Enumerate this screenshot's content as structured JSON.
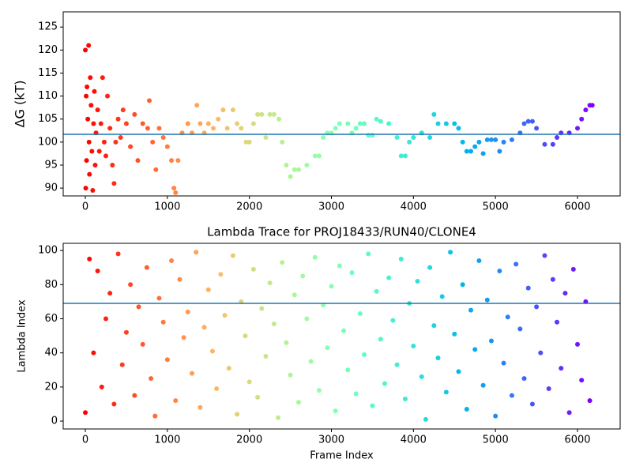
{
  "chart_data": [
    {
      "type": "scatter",
      "ylabel": "ΔG (kT)",
      "x": [
        0,
        5,
        10,
        15,
        20,
        30,
        40,
        45,
        50,
        60,
        70,
        80,
        90,
        100,
        110,
        120,
        130,
        150,
        170,
        190,
        210,
        230,
        250,
        270,
        300,
        330,
        350,
        370,
        400,
        430,
        460,
        500,
        550,
        600,
        640,
        700,
        760,
        780,
        820,
        860,
        900,
        950,
        1000,
        1050,
        1080,
        1100,
        1130,
        1180,
        1250,
        1300,
        1360,
        1400,
        1450,
        1500,
        1560,
        1620,
        1680,
        1730,
        1800,
        1850,
        1900,
        1960,
        2000,
        2050,
        2100,
        2150,
        2200,
        2250,
        2300,
        2360,
        2400,
        2450,
        2500,
        2550,
        2600,
        2700,
        2800,
        2850,
        2900,
        2950,
        3000,
        3050,
        3100,
        3200,
        3250,
        3300,
        3350,
        3400,
        3450,
        3500,
        3550,
        3600,
        3700,
        3800,
        3850,
        3900,
        3950,
        4000,
        4100,
        4200,
        4250,
        4300,
        4400,
        4500,
        4550,
        4600,
        4650,
        4700,
        4750,
        4800,
        4850,
        4900,
        4950,
        5000,
        5050,
        5100,
        5200,
        5300,
        5350,
        5400,
        5450,
        5500,
        5600,
        5700,
        5750,
        5800,
        5900,
        6000,
        6050,
        6100,
        6150,
        6180
      ],
      "values": [
        120,
        90,
        110,
        96,
        112,
        105,
        121,
        100,
        93,
        114,
        108,
        98,
        89.5,
        104,
        111,
        95,
        102,
        107,
        98,
        104,
        114,
        100,
        97,
        110,
        103,
        95,
        91,
        100,
        105,
        101,
        107,
        104,
        99,
        106,
        96,
        104,
        103,
        109,
        100,
        94,
        103,
        101,
        99,
        96,
        90,
        89,
        96,
        102,
        104,
        102,
        108,
        104,
        102,
        104,
        103,
        105,
        107,
        103,
        107,
        104,
        103,
        100,
        100,
        104,
        106,
        106,
        101,
        106,
        106,
        105,
        100,
        95,
        92.5,
        94,
        94,
        95,
        97,
        97,
        101,
        102,
        102,
        103,
        104,
        104,
        102,
        103,
        104,
        104,
        101.5,
        101.5,
        105,
        104.5,
        104,
        101,
        97,
        97,
        100,
        101,
        102,
        101,
        106,
        104,
        104,
        104,
        103,
        100,
        98,
        98,
        99,
        100,
        97.5,
        100.5,
        100.5,
        100.5,
        98,
        100,
        100.5,
        102,
        104,
        104.5,
        104.5,
        103,
        99.5,
        99.5,
        101,
        102,
        102,
        103,
        105,
        107,
        108,
        108
      ],
      "colormap": "rainbow_r",
      "hline": 101.7,
      "hline_color": "#1f77b4",
      "xlim": [
        -270,
        6520
      ],
      "ylim": [
        88.3,
        128.3
      ],
      "xticks": [
        0,
        1000,
        2000,
        3000,
        4000,
        5000,
        6000
      ],
      "yticks": [
        90,
        95,
        100,
        105,
        110,
        115,
        120,
        125
      ]
    },
    {
      "type": "scatter",
      "title": "Lambda Trace for PROJ18433/RUN40/CLONE4",
      "xlabel": "Frame Index",
      "ylabel": "Lambda Index",
      "x": [
        0,
        50,
        100,
        150,
        200,
        250,
        300,
        350,
        400,
        450,
        500,
        550,
        600,
        650,
        700,
        750,
        800,
        850,
        900,
        950,
        1000,
        1050,
        1100,
        1150,
        1200,
        1250,
        1300,
        1350,
        1400,
        1450,
        1500,
        1550,
        1600,
        1650,
        1700,
        1750,
        1800,
        1850,
        1900,
        1950,
        2000,
        2050,
        2100,
        2150,
        2200,
        2250,
        2300,
        2350,
        2400,
        2450,
        2500,
        2550,
        2600,
        2650,
        2700,
        2750,
        2800,
        2850,
        2900,
        2950,
        3000,
        3050,
        3100,
        3150,
        3200,
        3250,
        3300,
        3350,
        3400,
        3450,
        3500,
        3550,
        3600,
        3650,
        3700,
        3750,
        3800,
        3850,
        3900,
        3950,
        4000,
        4050,
        4100,
        4150,
        4200,
        4250,
        4300,
        4350,
        4400,
        4450,
        4500,
        4550,
        4600,
        4650,
        4700,
        4750,
        4800,
        4850,
        4900,
        4950,
        5000,
        5050,
        5100,
        5150,
        5200,
        5250,
        5300,
        5350,
        5400,
        5450,
        5500,
        5550,
        5600,
        5650,
        5700,
        5750,
        5800,
        5850,
        5900,
        5950,
        6000,
        6050,
        6100,
        6150
      ],
      "values": [
        5,
        95,
        40,
        88,
        20,
        60,
        75,
        10,
        98,
        33,
        52,
        80,
        15,
        67,
        45,
        90,
        25,
        3,
        72,
        58,
        36,
        94,
        12,
        83,
        49,
        64,
        28,
        99,
        8,
        55,
        77,
        41,
        19,
        86,
        62,
        31,
        97,
        4,
        70,
        50,
        23,
        89,
        14,
        66,
        38,
        81,
        57,
        2,
        93,
        46,
        27,
        74,
        11,
        85,
        60,
        35,
        96,
        18,
        68,
        43,
        79,
        6,
        91,
        53,
        30,
        87,
        16,
        63,
        39,
        98,
        9,
        76,
        48,
        22,
        84,
        59,
        33,
        95,
        13,
        69,
        44,
        82,
        26,
        1,
        90,
        56,
        37,
        73,
        17,
        99,
        51,
        29,
        80,
        7,
        65,
        42,
        94,
        21,
        71,
        47,
        3,
        88,
        34,
        61,
        15,
        92,
        54,
        25,
        78,
        10,
        67,
        40,
        97,
        19,
        83,
        58,
        31,
        75,
        5,
        89,
        45,
        24,
        70,
        12
      ],
      "colormap": "rainbow_r",
      "hline": 69,
      "hline_color": "#1f77b4",
      "xlim": [
        -270,
        6520
      ],
      "ylim": [
        -4.6,
        104.2
      ],
      "xticks": [
        0,
        1000,
        2000,
        3000,
        4000,
        5000,
        6000
      ],
      "yticks": [
        0,
        20,
        40,
        60,
        80,
        100
      ]
    }
  ]
}
